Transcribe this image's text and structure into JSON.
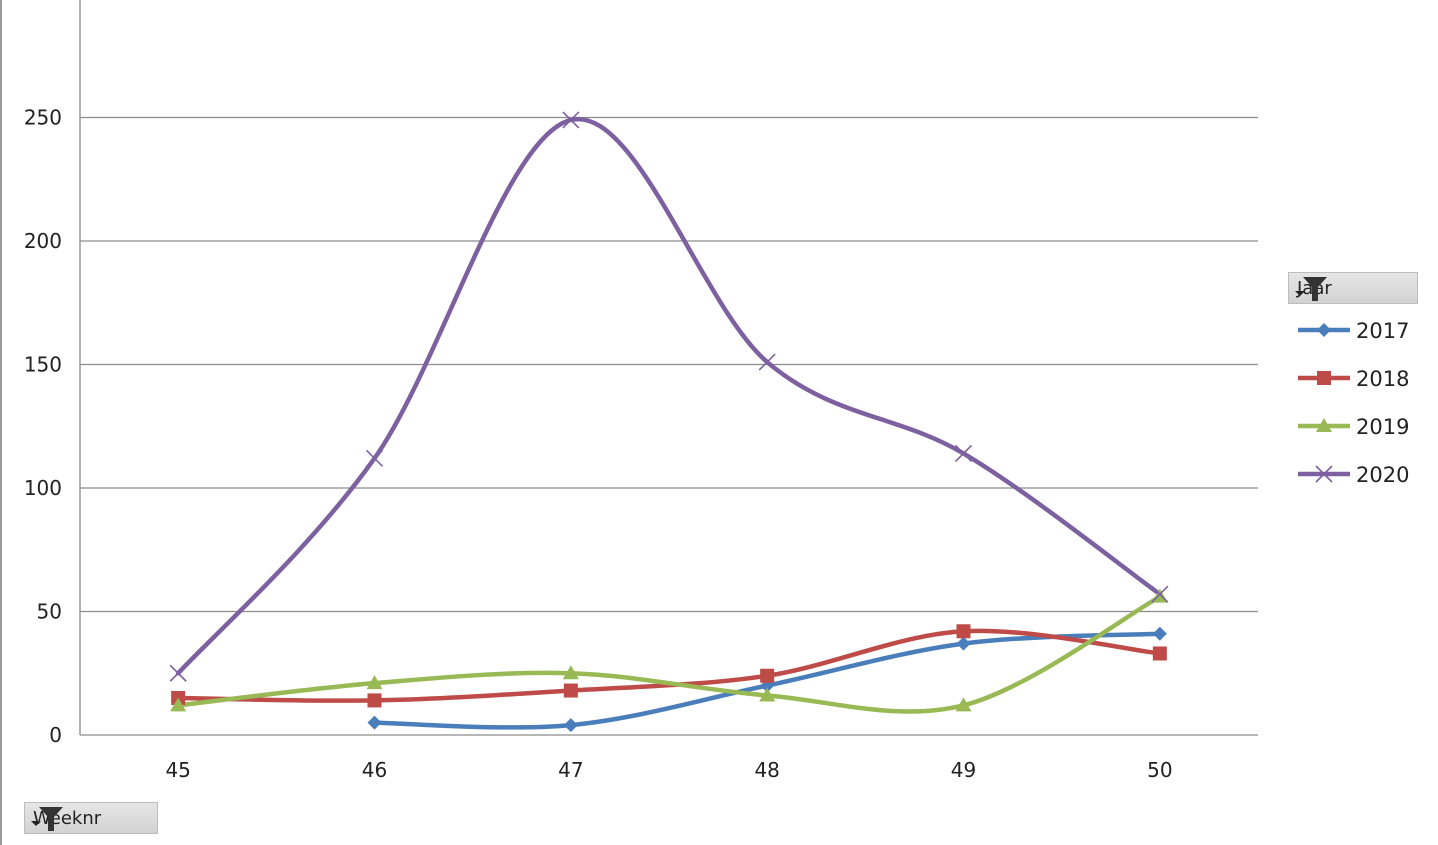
{
  "chart_data": {
    "type": "line",
    "smooth": true,
    "title": "",
    "xlabel": "",
    "ylabel": "",
    "categories": [
      "45",
      "46",
      "47",
      "48",
      "49",
      "50"
    ],
    "ylim": [
      0,
      300
    ],
    "yticks": [
      0,
      50,
      100,
      150,
      200,
      250
    ],
    "grid": true,
    "legend_position": "right",
    "legend_title": "Jaar",
    "x_field_button": "Weeknr",
    "series": [
      {
        "name": "2017",
        "color": "#4a7ebb",
        "marker": "diamond",
        "values": [
          null,
          5,
          4,
          20,
          37,
          41
        ]
      },
      {
        "name": "2018",
        "color": "#be4b48",
        "marker": "square",
        "values": [
          15,
          14,
          18,
          24,
          42,
          33
        ]
      },
      {
        "name": "2019",
        "color": "#98b954",
        "marker": "triangle",
        "values": [
          12,
          21,
          25,
          16,
          12,
          56
        ]
      },
      {
        "name": "2020",
        "color": "#7d60a0",
        "marker": "x",
        "values": [
          25,
          112,
          249,
          151,
          114,
          57
        ]
      }
    ]
  }
}
